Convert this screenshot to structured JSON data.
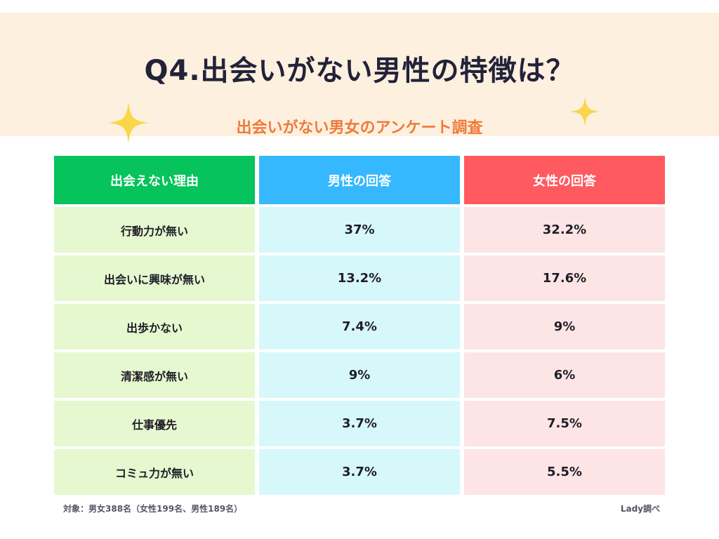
{
  "header": {
    "title": "Q4.出会いがない男性の特徴は？",
    "subtitle": "出会いがない男女のアンケート調査"
  },
  "colors": {
    "header_bg": "#fdf0df",
    "subtitle": "#ef7a3a",
    "sparkle": "#f9d64a",
    "col0_head": "#06c35b",
    "col1_head": "#36b8ff",
    "col2_head": "#ff5a5f",
    "col0_body": "#e6f8cf",
    "col1_body": "#d7f8fb",
    "col2_body": "#fde5e5"
  },
  "chart_data": {
    "type": "table",
    "columns": [
      "出会えない理由",
      "男性の回答",
      "女性の回答"
    ],
    "rows": [
      {
        "reason": "行動力が無い",
        "male": "37%",
        "female": "32.2%"
      },
      {
        "reason": "出会いに興味が無い",
        "male": "13.2%",
        "female": "17.6%"
      },
      {
        "reason": "出歩かない",
        "male": "7.4%",
        "female": "9%"
      },
      {
        "reason": "清潔感が無い",
        "male": "9%",
        "female": "6%"
      },
      {
        "reason": "仕事優先",
        "male": "3.7%",
        "female": "7.5%"
      },
      {
        "reason": "コミュ力が無い",
        "male": "3.7%",
        "female": "5.5%"
      }
    ]
  },
  "footer": {
    "target": "対象：男女388名（女性199名、男性189名）",
    "source": "Lady調べ"
  }
}
